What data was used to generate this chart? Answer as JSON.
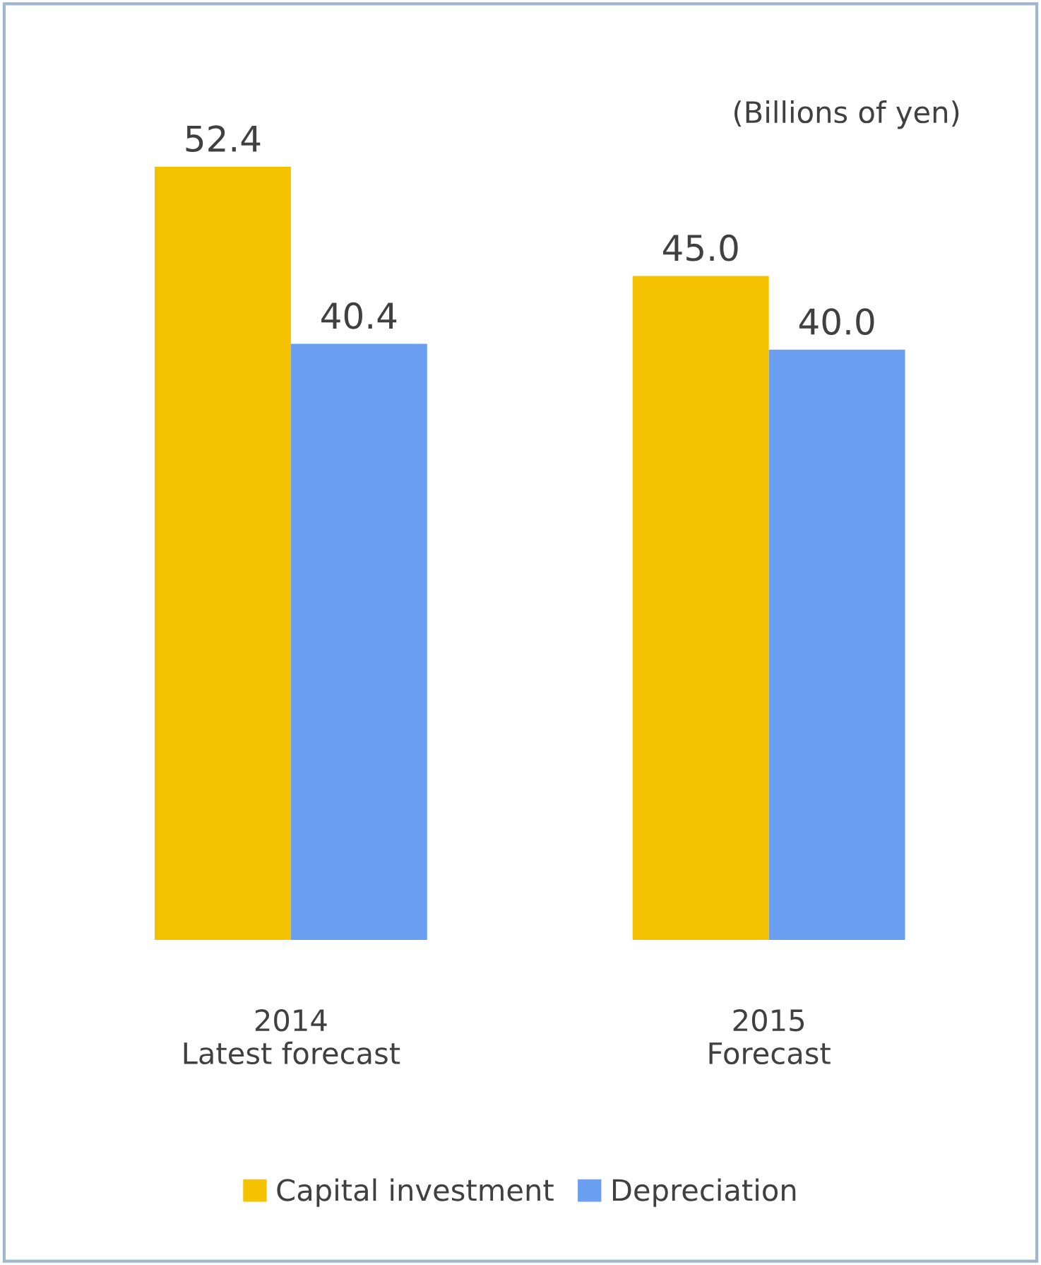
{
  "chart_data": {
    "type": "bar",
    "categories": [
      "2014\nLatest forecast",
      "2015\nForecast"
    ],
    "series": [
      {
        "name": "Capital investment",
        "color": "#f5c200",
        "values": [
          52.4,
          45.0
        ],
        "value_labels": [
          "52.4",
          "45.0"
        ]
      },
      {
        "name": "Depreciation",
        "color": "#6b9ff2",
        "values": [
          40.4,
          40.0
        ],
        "value_labels": [
          "40.4",
          "40.0"
        ]
      }
    ],
    "annotations": [
      "(Billions of yen)"
    ],
    "legend": "bottom",
    "grid": false
  }
}
